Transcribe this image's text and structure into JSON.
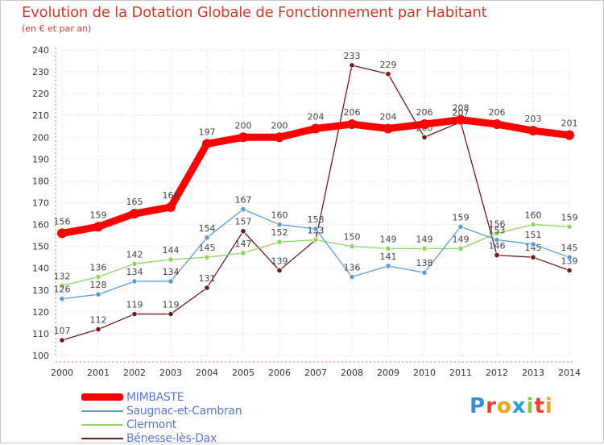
{
  "title": "Evolution de la Dotation Globale de Fonctionnement par Habitant",
  "subtitle": "(en € et par an)",
  "logo": {
    "letters": [
      "P",
      "r",
      "o",
      "x",
      "i",
      "t",
      "i"
    ],
    "colors": [
      "#3b8fd6",
      "#e8412c",
      "#f0a323",
      "#2a9fd8",
      "#8cc63f",
      "#e8412c",
      "#f0a323"
    ]
  },
  "chart_data": {
    "type": "line",
    "title": "Evolution de la Dotation Globale de Fonctionnement par Habitant",
    "subtitle": "(en € et par an)",
    "xlabel": "",
    "ylabel": "",
    "ylim": [
      100,
      240
    ],
    "yticks": [
      100,
      110,
      120,
      130,
      140,
      150,
      160,
      170,
      180,
      190,
      200,
      210,
      220,
      230,
      240
    ],
    "x": [
      "2000",
      "2001",
      "2002",
      "2003",
      "2004",
      "2005",
      "2006",
      "2007",
      "2008",
      "2009",
      "2010",
      "2011",
      "2012",
      "2013",
      "2014"
    ],
    "grid": true,
    "legend_position": "bottom-left",
    "series": [
      {
        "name": "MIMBASTE",
        "color": "#ff0000",
        "values": [
          156,
          159,
          165,
          168,
          197,
          200,
          200,
          204,
          206,
          204,
          206,
          208,
          206,
          203,
          201
        ]
      },
      {
        "name": "Saugnac-et-Cambran",
        "color": "#5b9bd5",
        "values": [
          126,
          128,
          134,
          134,
          154,
          167,
          160,
          158,
          136,
          141,
          138,
          159,
          153,
          151,
          145
        ]
      },
      {
        "name": "Clermont",
        "color": "#8ed461",
        "values": [
          132,
          136,
          142,
          144,
          145,
          147,
          152,
          153,
          150,
          149,
          149,
          149,
          156,
          160,
          159
        ]
      },
      {
        "name": "Bénesse-lès-Dax",
        "color": "#6b1a1a",
        "values": [
          107,
          112,
          119,
          119,
          131,
          157,
          139,
          153,
          233,
          229,
          200,
          207,
          146,
          145,
          139
        ]
      }
    ]
  }
}
